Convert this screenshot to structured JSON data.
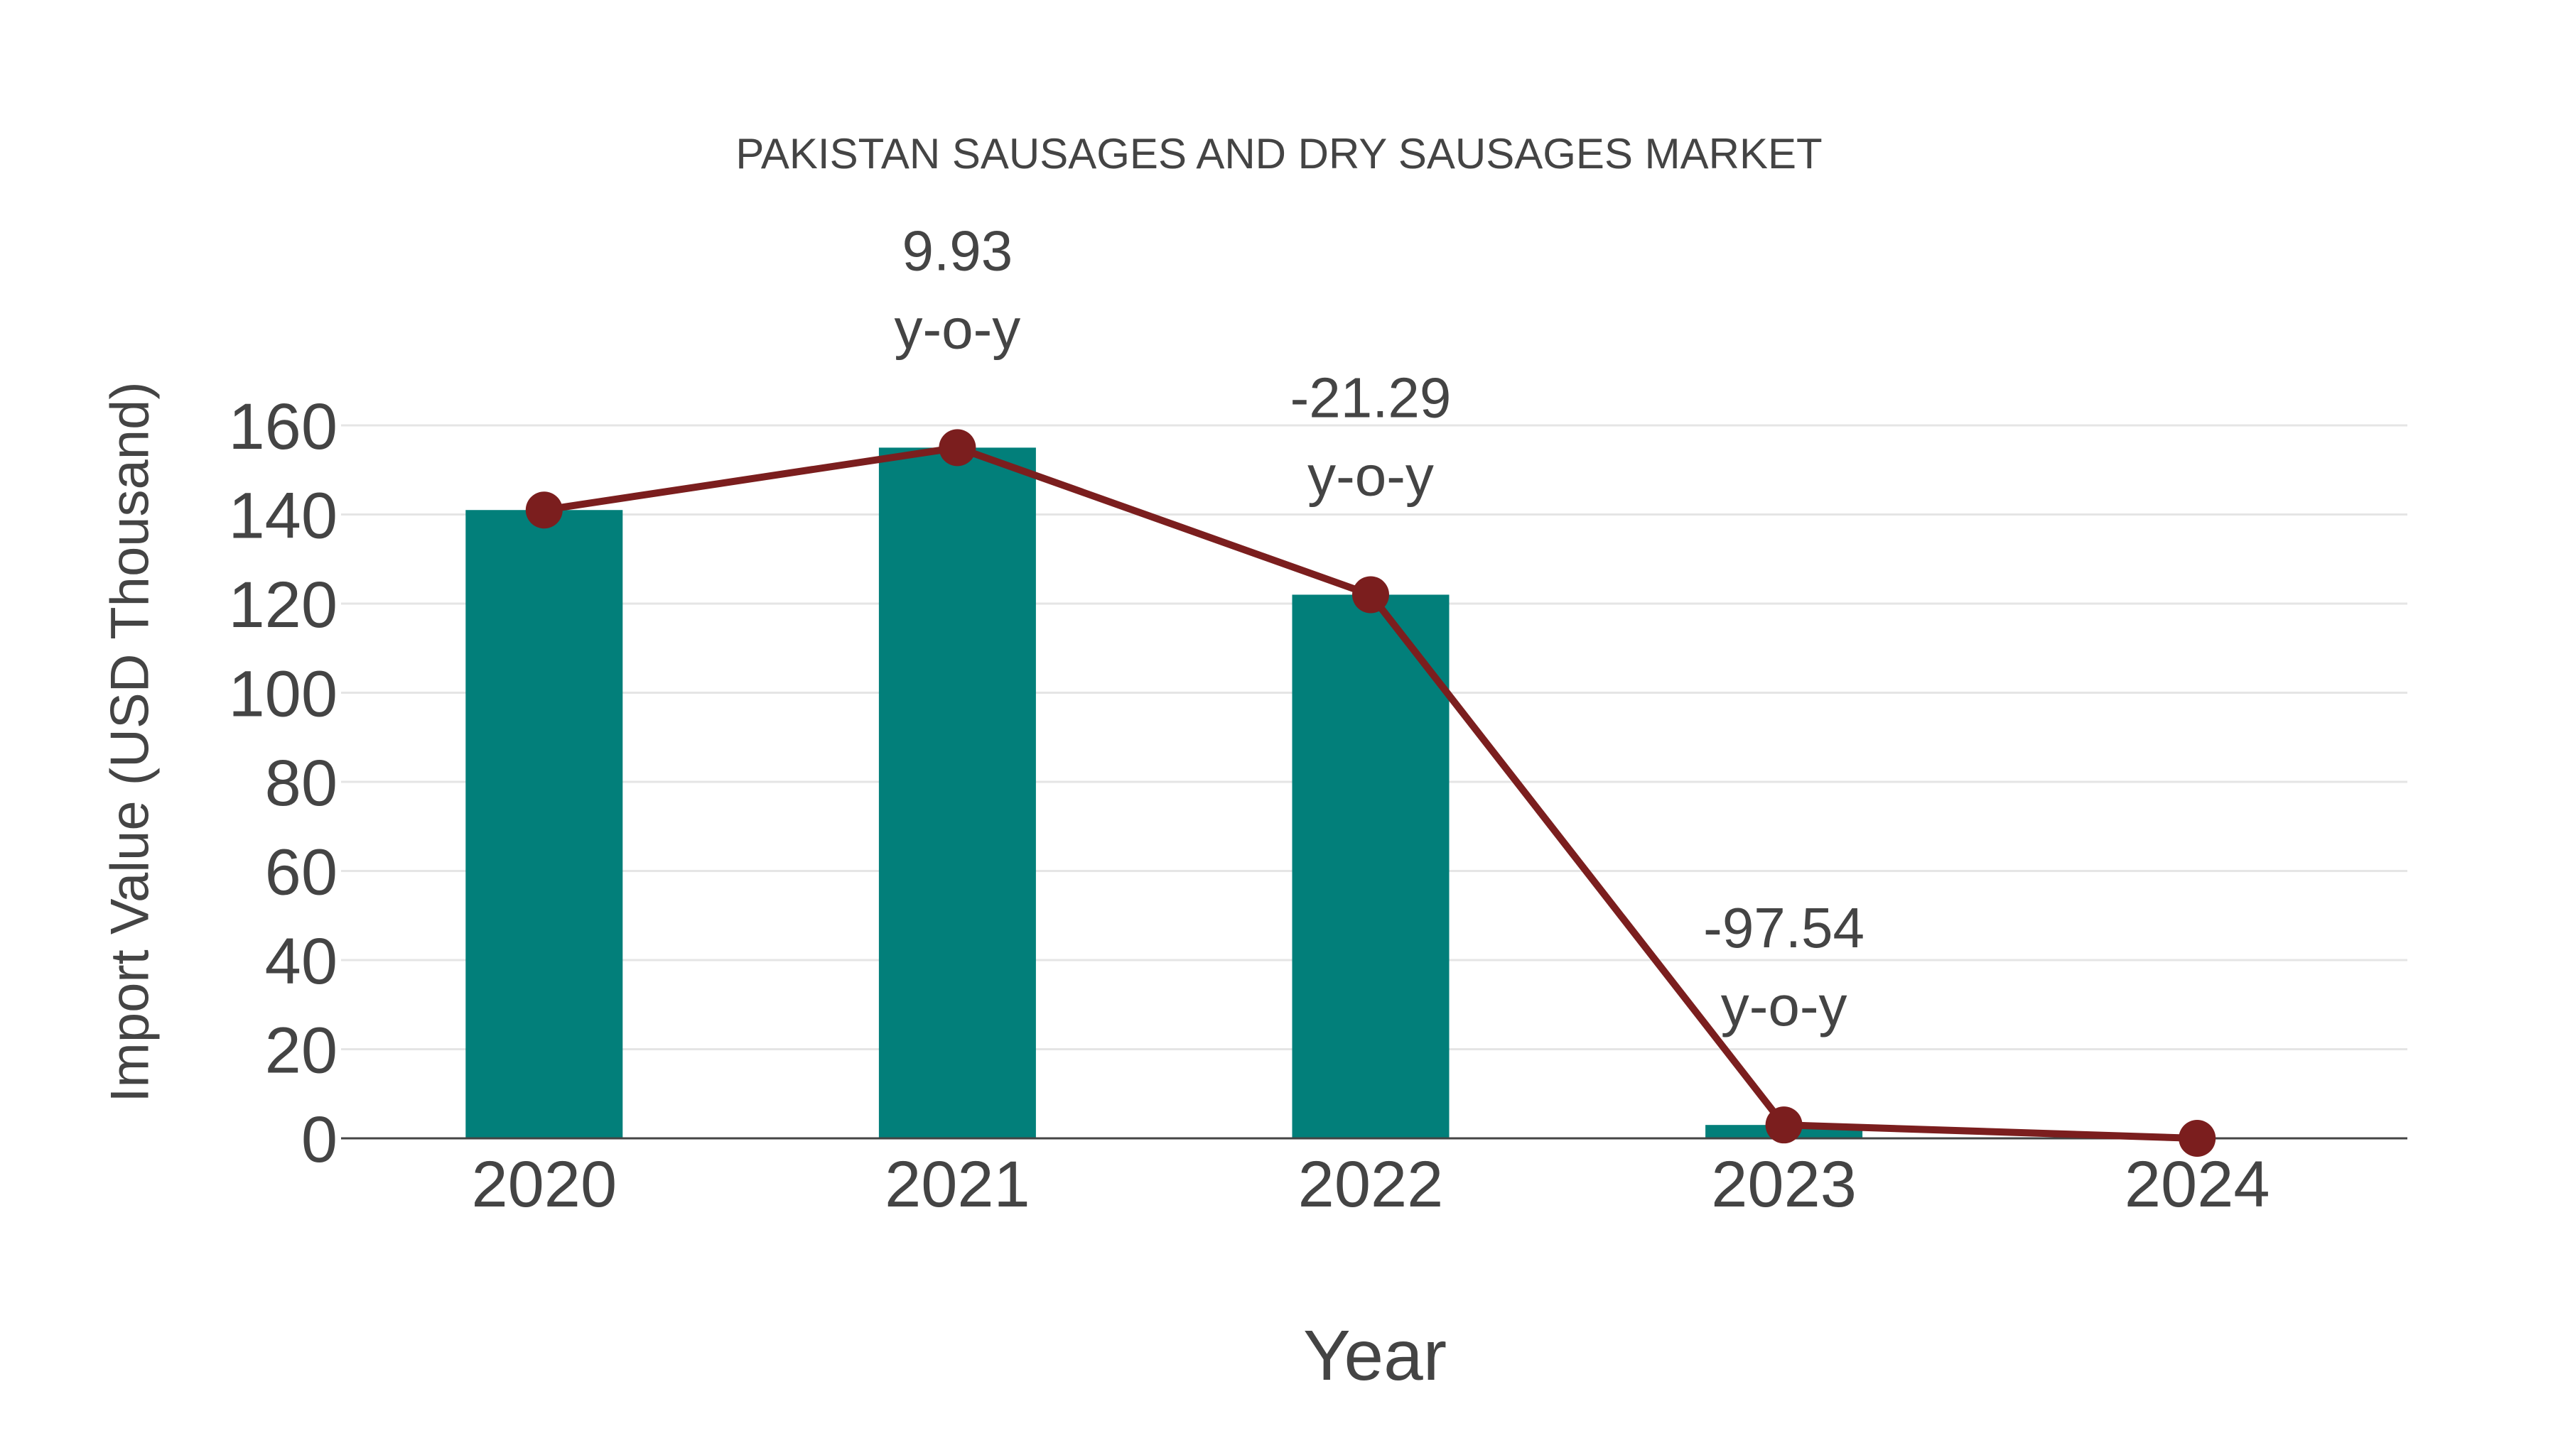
{
  "chart_data": {
    "type": "bar",
    "title": "PAKISTAN SAUSAGES AND DRY SAUSAGES MARKET",
    "xlabel": "Year",
    "ylabel": "Import Value (USD Thousand)",
    "categories": [
      "2020",
      "2021",
      "2022",
      "2023",
      "2024"
    ],
    "series": [
      {
        "name": "Import Value",
        "kind": "bar",
        "color": "#027f7a",
        "values": [
          141,
          155,
          122,
          3,
          0
        ]
      },
      {
        "name": "Trend",
        "kind": "line",
        "color": "#7b1e1e",
        "values": [
          141,
          155,
          122,
          3,
          0
        ]
      }
    ],
    "annotations": [
      {
        "category": "2021",
        "value": "9.93",
        "suffix": "y-o-y"
      },
      {
        "category": "2022",
        "value": "-21.29",
        "suffix": "y-o-y"
      },
      {
        "category": "2023",
        "value": "-97.54",
        "suffix": "y-o-y"
      }
    ],
    "yticks": [
      0,
      20,
      40,
      60,
      80,
      100,
      120,
      140,
      160
    ],
    "ylim": [
      0,
      160
    ],
    "grid": true,
    "legend": "none"
  },
  "colors": {
    "bar": "#027f7a",
    "line": "#7b1e1e",
    "grid": "#e5e5e5",
    "axis": "#444444",
    "text": "#444444"
  }
}
